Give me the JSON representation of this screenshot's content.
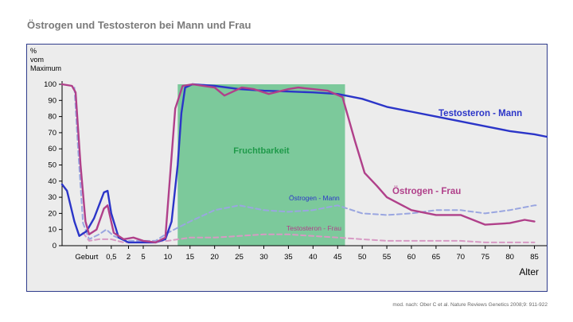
{
  "title": "Östrogen und Testosteron bei Mann und Frau",
  "source": "mod. nach: Ober C et al. Nature Reviews Genetics 2008;9: 911-922",
  "colors": {
    "testosterone_male": "#2b35c8",
    "estrogen_female": "#b0408a",
    "estrogen_male_dashed": "#9aa6e0",
    "testosterone_female_dashed": "#d79ac4",
    "fertility": "#7cc99b",
    "fertility_text": "#1f9a4a",
    "background": "#ececec"
  },
  "chart_data": {
    "type": "line",
    "ylabel_lines": [
      "%",
      "vom",
      "Maximum"
    ],
    "xlabel": "Alter",
    "ylim": [
      0,
      100
    ],
    "yticks": [
      0,
      10,
      20,
      30,
      40,
      50,
      60,
      70,
      80,
      90,
      100
    ],
    "xticks": [
      {
        "label": "Geburt",
        "pos": 1
      },
      {
        "label": "0,5",
        "pos": 2
      },
      {
        "label": "2",
        "pos": 2.7
      },
      {
        "label": "5",
        "pos": 3.3
      },
      {
        "label": "10",
        "pos": 4.3
      },
      {
        "label": "15",
        "pos": 5.2
      },
      {
        "label": "20",
        "pos": 6.2
      },
      {
        "label": "25",
        "pos": 7.2
      },
      {
        "label": "30",
        "pos": 8.2
      },
      {
        "label": "35",
        "pos": 9.2
      },
      {
        "label": "40",
        "pos": 10.2
      },
      {
        "label": "45",
        "pos": 11.2
      },
      {
        "label": "50",
        "pos": 12.2
      },
      {
        "label": "55",
        "pos": 13.2
      },
      {
        "label": "60",
        "pos": 14.2
      },
      {
        "label": "65",
        "pos": 15.2
      },
      {
        "label": "70",
        "pos": 16.2
      },
      {
        "label": "75",
        "pos": 17.2
      },
      {
        "label": "80",
        "pos": 18.2
      },
      {
        "label": "85",
        "pos": 19.2
      }
    ],
    "fertility_band": {
      "label": "Fruchtbarkeit",
      "from": 4.7,
      "to": 11.5,
      "top": 100
    },
    "series": [
      {
        "name": "Testosteron - Mann",
        "style": "solid",
        "color_key": "testosterone_male",
        "points": [
          [
            0,
            38
          ],
          [
            0.2,
            34
          ],
          [
            0.5,
            15
          ],
          [
            0.7,
            6
          ],
          [
            1.0,
            9
          ],
          [
            1.3,
            17
          ],
          [
            1.7,
            33
          ],
          [
            1.85,
            34
          ],
          [
            2.0,
            20
          ],
          [
            2.3,
            5
          ],
          [
            2.7,
            2
          ],
          [
            3.3,
            2
          ],
          [
            3.8,
            2
          ],
          [
            4.2,
            4
          ],
          [
            4.45,
            15
          ],
          [
            4.7,
            50
          ],
          [
            4.85,
            82
          ],
          [
            5.0,
            98
          ],
          [
            5.3,
            100
          ],
          [
            6.2,
            99
          ],
          [
            7.2,
            97
          ],
          [
            8.2,
            96
          ],
          [
            9.2,
            95.5
          ],
          [
            10.2,
            95
          ],
          [
            11.2,
            94
          ],
          [
            12.2,
            91
          ],
          [
            13.2,
            86
          ],
          [
            14.2,
            83
          ],
          [
            15.2,
            80
          ],
          [
            16.2,
            77
          ],
          [
            17.2,
            74
          ],
          [
            18.2,
            71
          ],
          [
            19.2,
            69
          ],
          [
            19.7,
            67.5
          ]
        ]
      },
      {
        "name": "Östrogen - Frau",
        "style": "solid",
        "color_key": "estrogen_female",
        "points": [
          [
            0,
            100
          ],
          [
            0.4,
            99
          ],
          [
            0.55,
            95
          ],
          [
            0.75,
            50
          ],
          [
            0.95,
            15
          ],
          [
            1.1,
            7
          ],
          [
            1.4,
            10
          ],
          [
            1.7,
            23
          ],
          [
            1.85,
            25
          ],
          [
            2.1,
            8
          ],
          [
            2.5,
            4
          ],
          [
            2.9,
            5
          ],
          [
            3.3,
            3
          ],
          [
            3.8,
            2
          ],
          [
            4.2,
            5
          ],
          [
            4.4,
            45
          ],
          [
            4.6,
            85
          ],
          [
            4.9,
            99
          ],
          [
            5.3,
            100
          ],
          [
            6.2,
            98
          ],
          [
            6.6,
            93
          ],
          [
            7.3,
            98
          ],
          [
            7.8,
            97
          ],
          [
            8.4,
            94
          ],
          [
            9.2,
            97
          ],
          [
            9.6,
            98
          ],
          [
            10.2,
            97
          ],
          [
            10.8,
            96
          ],
          [
            11.4,
            92
          ],
          [
            11.9,
            65
          ],
          [
            12.3,
            45
          ],
          [
            12.8,
            37
          ],
          [
            13.2,
            30
          ],
          [
            14.2,
            22
          ],
          [
            15.2,
            19
          ],
          [
            16.2,
            19
          ],
          [
            17.2,
            13
          ],
          [
            18.2,
            14
          ],
          [
            18.8,
            16
          ],
          [
            19.2,
            15
          ]
        ]
      },
      {
        "name": "Östrogen - Mann",
        "style": "dashed",
        "color_key": "estrogen_male_dashed",
        "points": [
          [
            0.5,
            98
          ],
          [
            0.65,
            60
          ],
          [
            0.85,
            14
          ],
          [
            1.1,
            4
          ],
          [
            1.5,
            7
          ],
          [
            1.8,
            10
          ],
          [
            2.1,
            6
          ],
          [
            2.6,
            3
          ],
          [
            3.3,
            3
          ],
          [
            3.8,
            3
          ],
          [
            4.3,
            8
          ],
          [
            5.2,
            15
          ],
          [
            6.2,
            22
          ],
          [
            7.2,
            25
          ],
          [
            8.2,
            22
          ],
          [
            9.2,
            21
          ],
          [
            10.2,
            22
          ],
          [
            11.2,
            25
          ],
          [
            12.2,
            20
          ],
          [
            13.2,
            19
          ],
          [
            14.2,
            20
          ],
          [
            15.2,
            22
          ],
          [
            16.2,
            22
          ],
          [
            17.2,
            20
          ],
          [
            18.2,
            22
          ],
          [
            19.2,
            25
          ],
          [
            19.3,
            25
          ]
        ]
      },
      {
        "name": "Testosteron - Frau",
        "style": "dashed",
        "color_key": "testosterone_female_dashed",
        "points": [
          [
            0.85,
            8
          ],
          [
            1.1,
            3
          ],
          [
            1.5,
            4
          ],
          [
            2.0,
            4
          ],
          [
            2.5,
            2
          ],
          [
            3.3,
            2
          ],
          [
            4.3,
            3
          ],
          [
            5.2,
            5
          ],
          [
            6.2,
            5
          ],
          [
            7.2,
            6
          ],
          [
            8.2,
            7
          ],
          [
            9.2,
            7
          ],
          [
            10.2,
            6
          ],
          [
            11.2,
            5
          ],
          [
            12.2,
            4
          ],
          [
            13.2,
            3
          ],
          [
            14.2,
            3
          ],
          [
            15.2,
            3
          ],
          [
            16.2,
            3
          ],
          [
            17.2,
            2
          ],
          [
            18.2,
            2
          ],
          [
            19.2,
            2
          ]
        ]
      }
    ],
    "series_labels": [
      {
        "text": "Testosteron - Mann",
        "color_key": "testosterone_male",
        "size": "large"
      },
      {
        "text": "Östrogen - Frau",
        "color_key": "estrogen_female",
        "size": "large"
      },
      {
        "text": "Östrogen - Mann",
        "color_key": "testosterone_male",
        "size": "small"
      },
      {
        "text": "Testosteron - Frau",
        "color_key": "estrogen_female",
        "size": "small"
      }
    ]
  }
}
